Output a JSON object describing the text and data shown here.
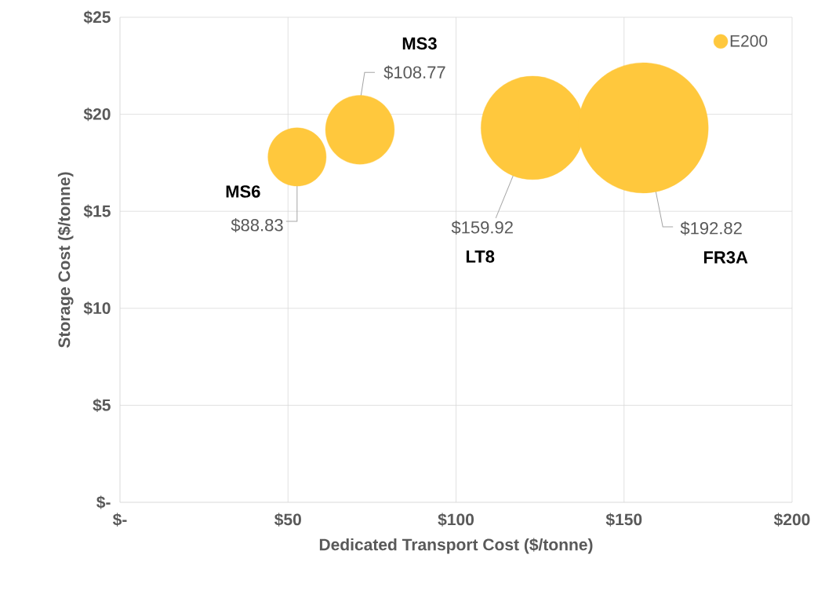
{
  "chart_data": {
    "type": "bubble",
    "xlabel": "Dedicated Transport Cost ($/tonne)",
    "ylabel": "Storage Cost ($/tonne)",
    "x": [
      52.7,
      71.4,
      122.8,
      155.7
    ],
    "series": [
      {
        "name": "E200",
        "color": "#ffc83d",
        "values": [
          17.8,
          19.2,
          19.3,
          19.3
        ],
        "sizes": [
          0.2,
          0.28,
          0.63,
          1
        ]
      }
    ],
    "annotations": [
      {
        "text": "$88.83",
        "x": 52.7,
        "y": 17.8
      },
      {
        "text": "$108.77",
        "x": 71.4,
        "y": 19.2
      },
      {
        "text": "$159.92",
        "x": 122.8,
        "y": 19.3
      },
      {
        "text": "$192.82",
        "x": 155.7,
        "y": 19.3
      },
      "MS6",
      "MS3",
      "LT8",
      "FR3A"
    ],
    "xlim": [
      0,
      200
    ],
    "ylim": [
      0,
      25
    ],
    "xticks": [
      {
        "value": 0,
        "label": "$-"
      },
      {
        "value": 50,
        "label": "$50"
      },
      {
        "value": 100,
        "label": "$100"
      },
      {
        "value": 150,
        "label": "$150"
      },
      {
        "value": 200,
        "label": "$200"
      }
    ],
    "yticks": [
      {
        "value": 0,
        "label": "$-"
      },
      {
        "value": 5,
        "label": "$5"
      },
      {
        "value": 10,
        "label": "$10"
      },
      {
        "value": 15,
        "label": "$15"
      },
      {
        "value": 20,
        "label": "$20"
      },
      {
        "value": 25,
        "label": "$25"
      }
    ],
    "grid": true,
    "legend": "top right",
    "marker": "circle"
  }
}
